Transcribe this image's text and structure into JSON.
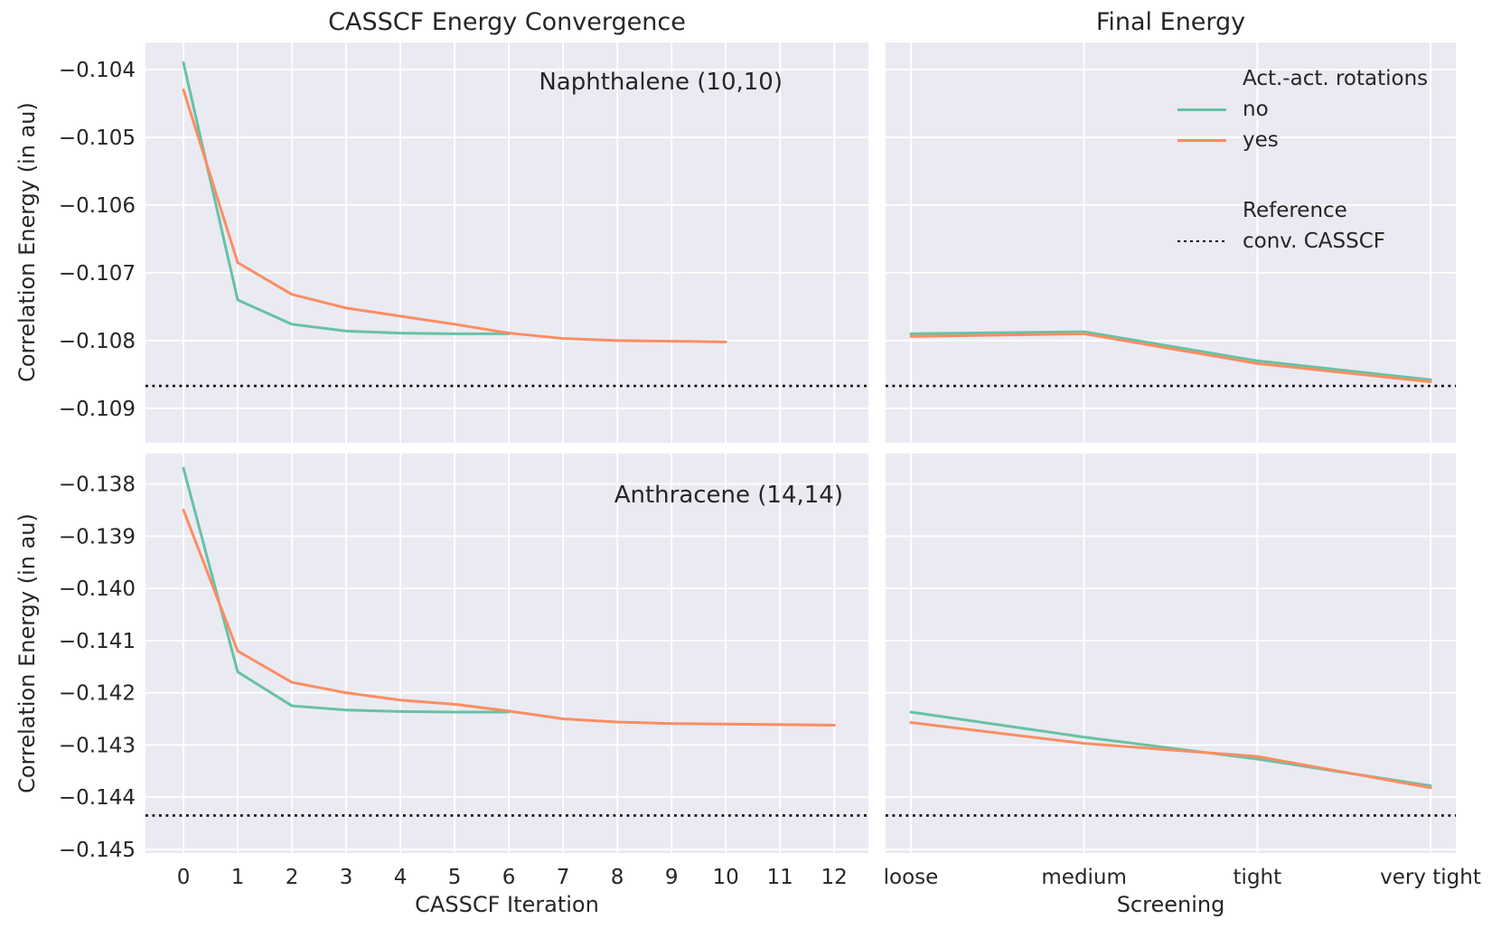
{
  "colors": {
    "no": "#66c2a5",
    "yes": "#fc8d62",
    "reference": "#000000",
    "panel_bg": "#eaeaf2",
    "grid": "#ffffff",
    "text": "#262626"
  },
  "titles": {
    "left": "CASSCF Energy Convergence",
    "right": "Final Energy"
  },
  "axes": {
    "ylabel": "Correlation Energy (in au)",
    "xlabel_left": "CASSCF Iteration",
    "xlabel_right": "Screening"
  },
  "annotations": {
    "top": "Naphthalene (10,10)",
    "bottom": "Anthracene (14,14)"
  },
  "legend": {
    "rotations_title": "Act.-act. rotations",
    "no_label": "no",
    "yes_label": "yes",
    "reference_title": "Reference",
    "reference_label": "conv. CASSCF"
  },
  "chart_data": [
    {
      "id": "naphthalene-convergence",
      "type": "line",
      "title": "CASSCF Energy Convergence",
      "annotation": "Naphthalene (10,10)",
      "ylabel": "Correlation Energy (in au)",
      "xlabel": "",
      "grid": true,
      "xlim": [
        -0.7,
        12.63
      ],
      "ylim": [
        -0.10951,
        -0.1036
      ],
      "xticks": [
        0,
        1,
        2,
        3,
        4,
        5,
        6,
        7,
        8,
        9,
        10,
        11,
        12
      ],
      "yticks": [
        -0.104,
        -0.105,
        -0.106,
        -0.107,
        -0.108,
        -0.109
      ],
      "show_yticklabels": true,
      "show_xticklabels": false,
      "reference_value": -0.10867,
      "series": [
        {
          "name": "no",
          "color": "#66c2a5",
          "x": [
            0,
            1,
            2,
            3,
            4,
            5,
            6
          ],
          "y": [
            -0.1039,
            -0.1074,
            -0.10776,
            -0.10786,
            -0.10789,
            -0.1079,
            -0.1079
          ]
        },
        {
          "name": "yes",
          "color": "#fc8d62",
          "x": [
            0,
            1,
            2,
            3,
            4,
            5,
            6,
            7,
            8,
            9,
            10
          ],
          "y": [
            -0.1043,
            -0.10685,
            -0.10732,
            -0.10752,
            -0.10764,
            -0.10776,
            -0.10789,
            -0.10797,
            -0.108,
            -0.10801,
            -0.10802
          ]
        }
      ]
    },
    {
      "id": "naphthalene-final-energy",
      "type": "line",
      "title": "Final Energy",
      "grid": true,
      "xlim": [
        -0.146,
        3.146
      ],
      "ylim": [
        -0.10951,
        -0.1036
      ],
      "xticks": [
        0,
        1,
        2,
        3
      ],
      "xticklabels": [
        "loose",
        "medium",
        "tight",
        "very tight"
      ],
      "yticks": [
        -0.104,
        -0.105,
        -0.106,
        -0.107,
        -0.108,
        -0.109
      ],
      "show_yticklabels": false,
      "show_xticklabels": false,
      "reference_value": -0.10867,
      "series": [
        {
          "name": "no",
          "color": "#66c2a5",
          "x": [
            0,
            1,
            2,
            3
          ],
          "y": [
            -0.1079,
            -0.10787,
            -0.1083,
            -0.10858
          ]
        },
        {
          "name": "yes",
          "color": "#fc8d62",
          "x": [
            0,
            1,
            2,
            3
          ],
          "y": [
            -0.10794,
            -0.1079,
            -0.10834,
            -0.10861
          ]
        }
      ]
    },
    {
      "id": "anthracene-convergence",
      "type": "line",
      "annotation": "Anthracene (14,14)",
      "ylabel": "Correlation Energy (in au)",
      "xlabel": "CASSCF Iteration",
      "grid": true,
      "xlim": [
        -0.7,
        12.63
      ],
      "ylim": [
        -0.14507,
        -0.13742
      ],
      "xticks": [
        0,
        1,
        2,
        3,
        4,
        5,
        6,
        7,
        8,
        9,
        10,
        11,
        12
      ],
      "yticks": [
        -0.138,
        -0.139,
        -0.14,
        -0.141,
        -0.142,
        -0.143,
        -0.144,
        -0.145
      ],
      "show_yticklabels": true,
      "show_xticklabels": true,
      "reference_value": -0.14435,
      "series": [
        {
          "name": "no",
          "color": "#66c2a5",
          "x": [
            0,
            1,
            2,
            3,
            4,
            5,
            6
          ],
          "y": [
            -0.1377,
            -0.1416,
            -0.14225,
            -0.14233,
            -0.14236,
            -0.14237,
            -0.14237
          ]
        },
        {
          "name": "yes",
          "color": "#fc8d62",
          "x": [
            0,
            1,
            2,
            3,
            4,
            5,
            6,
            7,
            8,
            9,
            10,
            11,
            12
          ],
          "y": [
            -0.1385,
            -0.1412,
            -0.1418,
            -0.142,
            -0.14214,
            -0.14222,
            -0.14235,
            -0.1425,
            -0.14256,
            -0.14259,
            -0.1426,
            -0.14261,
            -0.14262
          ]
        }
      ]
    },
    {
      "id": "anthracene-final-energy",
      "type": "line",
      "xlabel": "Screening",
      "grid": true,
      "xlim": [
        -0.146,
        3.146
      ],
      "ylim": [
        -0.14507,
        -0.13742
      ],
      "xticks": [
        0,
        1,
        2,
        3
      ],
      "xticklabels": [
        "loose",
        "medium",
        "tight",
        "very tight"
      ],
      "yticks": [
        -0.138,
        -0.139,
        -0.14,
        -0.141,
        -0.142,
        -0.143,
        -0.144,
        -0.145
      ],
      "show_yticklabels": false,
      "show_xticklabels": true,
      "reference_value": -0.14435,
      "series": [
        {
          "name": "no",
          "color": "#66c2a5",
          "x": [
            0,
            1,
            2,
            3
          ],
          "y": [
            -0.14237,
            -0.14285,
            -0.14327,
            -0.14378
          ]
        },
        {
          "name": "yes",
          "color": "#fc8d62",
          "x": [
            0,
            1,
            2,
            3
          ],
          "y": [
            -0.14257,
            -0.14297,
            -0.14322,
            -0.14382
          ]
        }
      ]
    }
  ]
}
